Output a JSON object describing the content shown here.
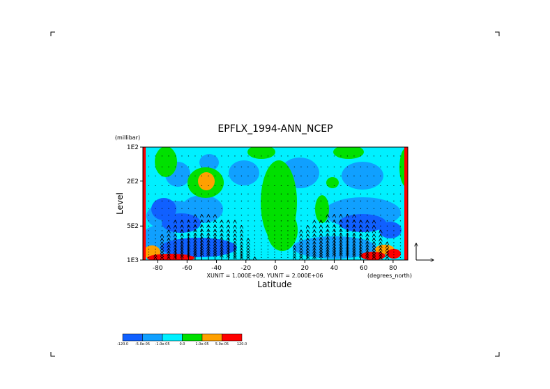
{
  "chart_data": {
    "type": "heatmap",
    "title": "EPFLX_1994-ANN_NCEP",
    "xlabel": "Latitude",
    "ylabel": "Level",
    "y_unit_label": "(millibar)",
    "x_unit_label": "(degrees_north)",
    "vector_scale_label": "XUNIT = 1.000E+09, YUNIT = 2.000E+06",
    "xlim": [
      -90,
      90
    ],
    "y_axis": {
      "scale": "log",
      "range_mb": [
        1000,
        100
      ]
    },
    "x_ticks": [
      {
        "value": -80,
        "label": "-80"
      },
      {
        "value": -60,
        "label": "-60"
      },
      {
        "value": -40,
        "label": "-40"
      },
      {
        "value": -20,
        "label": "-20"
      },
      {
        "value": 0,
        "label": "0"
      },
      {
        "value": 20,
        "label": "20"
      },
      {
        "value": 40,
        "label": "40"
      },
      {
        "value": 60,
        "label": "60"
      },
      {
        "value": 80,
        "label": "80"
      }
    ],
    "y_ticks": [
      {
        "value": 100,
        "label": "1E2"
      },
      {
        "value": 200,
        "label": "2E2"
      },
      {
        "value": 500,
        "label": "5E2"
      },
      {
        "value": 1000,
        "label": "1E3"
      }
    ],
    "color_levels": [
      {
        "label": "-120.0",
        "color": "#1060ff"
      },
      {
        "label": "-5.0e-05",
        "color": "#10a0ff"
      },
      {
        "label": "-1.0e-05",
        "color": "#00f0ff"
      },
      {
        "label": "0.0",
        "color": "#00e000"
      },
      {
        "label": "1.0e-05",
        "color": "#ffa000"
      },
      {
        "label": "5.0e-05",
        "color": "#ff0000"
      },
      {
        "label": "120.0",
        "color": null
      }
    ],
    "grid": false
  }
}
